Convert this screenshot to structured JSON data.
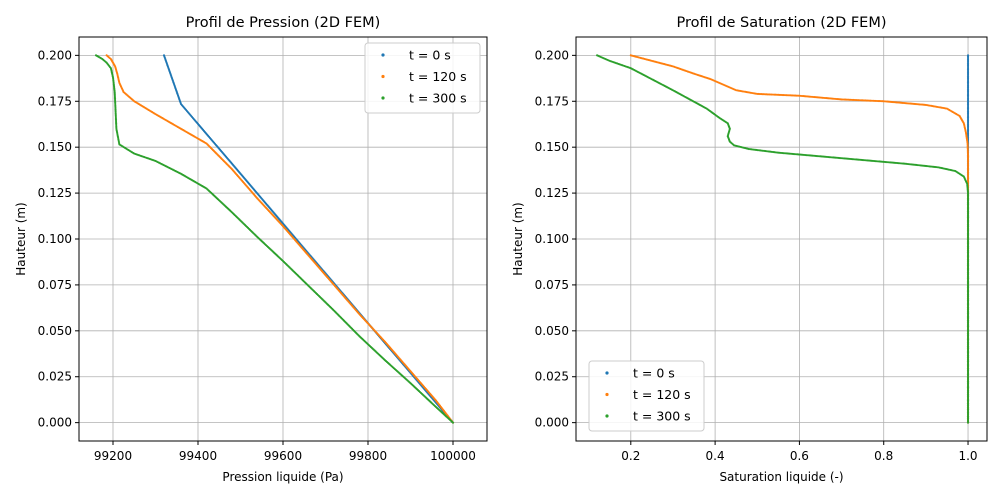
{
  "chart_data": [
    {
      "type": "scatter",
      "title": "Profil de Pression (2D FEM)",
      "xlabel": "Pression liquide (Pa)",
      "ylabel": "Hauteur (m)",
      "xlim": [
        99120,
        100080
      ],
      "ylim": [
        -0.01,
        0.21
      ],
      "xticks": [
        99200,
        99400,
        99600,
        99800,
        100000
      ],
      "xtick_labels": [
        "99200",
        "99400",
        "99600",
        "99800",
        "100000"
      ],
      "yticks": [
        0.0,
        0.025,
        0.05,
        0.075,
        0.1,
        0.125,
        0.15,
        0.175,
        0.2
      ],
      "ytick_labels": [
        "0.000",
        "0.025",
        "0.050",
        "0.075",
        "0.100",
        "0.125",
        "0.150",
        "0.175",
        "0.200"
      ],
      "grid": true,
      "legend": "top-right",
      "series": [
        {
          "name": "t = 0 s",
          "color": "#1f77b4",
          "x": [
            100000,
            99960,
            99900,
            99840,
            99780,
            99720,
            99660,
            99600,
            99540,
            99480,
            99420,
            99360,
            99320
          ],
          "y": [
            0.0,
            0.0108,
            0.0271,
            0.0433,
            0.0596,
            0.0759,
            0.0921,
            0.1084,
            0.1247,
            0.141,
            0.1572,
            0.1735,
            0.2
          ]
        },
        {
          "name": "t = 120 s",
          "color": "#ff7f0e",
          "x": [
            100000,
            99960,
            99900,
            99840,
            99780,
            99720,
            99660,
            99600,
            99540,
            99480,
            99420,
            99360,
            99300,
            99250,
            99225,
            99215,
            99210,
            99205,
            99195,
            99185
          ],
          "y": [
            0.0,
            0.012,
            0.028,
            0.044,
            0.059,
            0.075,
            0.091,
            0.107,
            0.122,
            0.138,
            0.152,
            0.16,
            0.168,
            0.175,
            0.18,
            0.185,
            0.19,
            0.194,
            0.198,
            0.2
          ]
        },
        {
          "name": "t = 300 s",
          "color": "#2ca02c",
          "x": [
            100000,
            99960,
            99900,
            99840,
            99780,
            99720,
            99660,
            99600,
            99540,
            99480,
            99420,
            99360,
            99300,
            99250,
            99215,
            99208,
            99206,
            99205,
            99204,
            99200,
            99195,
            99185,
            99175,
            99160
          ],
          "y": [
            0.0,
            0.0085,
            0.0215,
            0.034,
            0.047,
            0.061,
            0.0745,
            0.088,
            0.101,
            0.1145,
            0.1275,
            0.1355,
            0.1425,
            0.1465,
            0.1515,
            0.16,
            0.17,
            0.175,
            0.18,
            0.188,
            0.193,
            0.196,
            0.198,
            0.2
          ]
        }
      ]
    },
    {
      "type": "scatter",
      "title": "Profil de Saturation (2D FEM)",
      "xlabel": "Saturation liquide (-)",
      "ylabel": "Hauteur (m)",
      "xlim": [
        0.07,
        1.045
      ],
      "ylim": [
        -0.01,
        0.21
      ],
      "xticks": [
        0.2,
        0.4,
        0.6,
        0.8,
        1.0
      ],
      "xtick_labels": [
        "0.2",
        "0.4",
        "0.6",
        "0.8",
        "1.0"
      ],
      "yticks": [
        0.0,
        0.025,
        0.05,
        0.075,
        0.1,
        0.125,
        0.15,
        0.175,
        0.2
      ],
      "ytick_labels": [
        "0.000",
        "0.025",
        "0.050",
        "0.075",
        "0.100",
        "0.125",
        "0.150",
        "0.175",
        "0.200"
      ],
      "grid": true,
      "legend": "bottom-left",
      "series": [
        {
          "name": "t = 0 s",
          "color": "#1f77b4",
          "x": [
            1.0,
            1.0
          ],
          "y": [
            0.0,
            0.2
          ]
        },
        {
          "name": "t = 120 s",
          "color": "#ff7f0e",
          "x": [
            1.0,
            1.0,
            1.0,
            0.999,
            0.995,
            0.99,
            0.98,
            0.95,
            0.9,
            0.8,
            0.7,
            0.6,
            0.5,
            0.45,
            0.42,
            0.39,
            0.35,
            0.3,
            0.25,
            0.2
          ],
          "y": [
            0.0,
            0.13,
            0.145,
            0.152,
            0.158,
            0.163,
            0.167,
            0.171,
            0.173,
            0.175,
            0.176,
            0.178,
            0.179,
            0.181,
            0.184,
            0.187,
            0.19,
            0.194,
            0.197,
            0.2
          ]
        },
        {
          "name": "t = 300 s",
          "color": "#2ca02c",
          "x": [
            1.0,
            1.0,
            0.998,
            0.99,
            0.97,
            0.93,
            0.85,
            0.75,
            0.65,
            0.55,
            0.48,
            0.445,
            0.435,
            0.43,
            0.435,
            0.43,
            0.41,
            0.38,
            0.34,
            0.3,
            0.25,
            0.2,
            0.15,
            0.12
          ],
          "y": [
            0.0,
            0.125,
            0.13,
            0.134,
            0.137,
            0.139,
            0.141,
            0.143,
            0.145,
            0.147,
            0.149,
            0.151,
            0.153,
            0.156,
            0.16,
            0.163,
            0.166,
            0.171,
            0.176,
            0.181,
            0.187,
            0.193,
            0.197,
            0.2
          ]
        }
      ]
    }
  ]
}
